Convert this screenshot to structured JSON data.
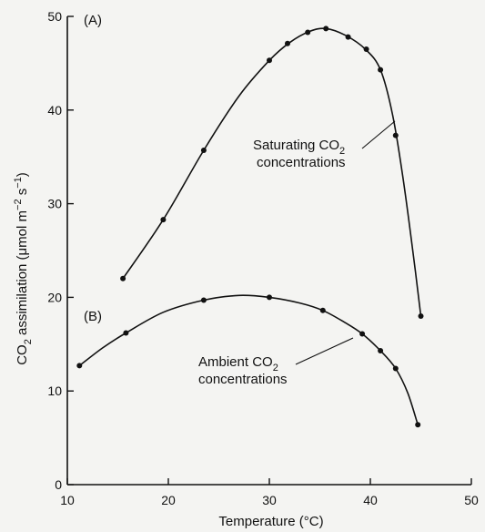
{
  "chart_data": {
    "type": "scatter",
    "xlabel": "Temperature (°C)",
    "ylabel_main": "CO",
    "ylabel_sub": "2",
    "ylabel_rest": " assimilation (μmol m",
    "ylabel_sup1": "−2",
    "ylabel_mid": " s",
    "ylabel_sup2": "−1",
    "ylabel_end": ")",
    "xlim": [
      10,
      50
    ],
    "ylim": [
      0,
      50
    ],
    "x_ticks": [
      10,
      20,
      30,
      40,
      50
    ],
    "y_ticks": [
      0,
      10,
      20,
      30,
      40,
      50
    ],
    "grid": false,
    "series": [
      {
        "panel": "(A)",
        "label_line1_main": "Saturating CO",
        "label_line1_sub": "2",
        "label_line2": "concentrations",
        "points": [
          [
            15.5,
            22
          ],
          [
            19.5,
            28.3
          ],
          [
            23.5,
            35.7
          ],
          [
            30,
            45.3
          ],
          [
            31.8,
            47.1
          ],
          [
            33.8,
            48.3
          ],
          [
            35.6,
            48.7
          ],
          [
            37.8,
            47.8
          ],
          [
            39.6,
            46.5
          ],
          [
            41,
            44.3
          ],
          [
            42.5,
            37.3
          ],
          [
            45,
            18
          ]
        ],
        "curve": [
          [
            15.5,
            22
          ],
          [
            19.5,
            28.3
          ],
          [
            23.5,
            35.7
          ],
          [
            27,
            41.5
          ],
          [
            30,
            45.3
          ],
          [
            32,
            47.2
          ],
          [
            34,
            48.4
          ],
          [
            35.6,
            48.7
          ],
          [
            37.5,
            48
          ],
          [
            39.5,
            46.5
          ],
          [
            41,
            44.3
          ],
          [
            42.2,
            39.5
          ],
          [
            43.2,
            33
          ],
          [
            44.2,
            25
          ],
          [
            45,
            18
          ]
        ]
      },
      {
        "panel": "(B)",
        "label_line1_main": "Ambient CO",
        "label_line1_sub": "2",
        "label_line2": "concentrations",
        "points": [
          [
            11.2,
            12.7
          ],
          [
            15.8,
            16.2
          ],
          [
            23.5,
            19.7
          ],
          [
            30,
            20
          ],
          [
            35.3,
            18.6
          ],
          [
            39.2,
            16.1
          ],
          [
            41,
            14.3
          ],
          [
            42.5,
            12.4
          ],
          [
            44.7,
            6.4
          ]
        ],
        "curve": [
          [
            11.2,
            12.7
          ],
          [
            13.5,
            14.6
          ],
          [
            15.8,
            16.2
          ],
          [
            19.5,
            18.4
          ],
          [
            23.5,
            19.7
          ],
          [
            27,
            20.2
          ],
          [
            30,
            20
          ],
          [
            33,
            19.4
          ],
          [
            35.3,
            18.6
          ],
          [
            37.5,
            17.3
          ],
          [
            39.2,
            16.1
          ],
          [
            41,
            14.3
          ],
          [
            42.5,
            12.4
          ],
          [
            43.7,
            9.8
          ],
          [
            44.7,
            6.4
          ]
        ]
      }
    ]
  }
}
